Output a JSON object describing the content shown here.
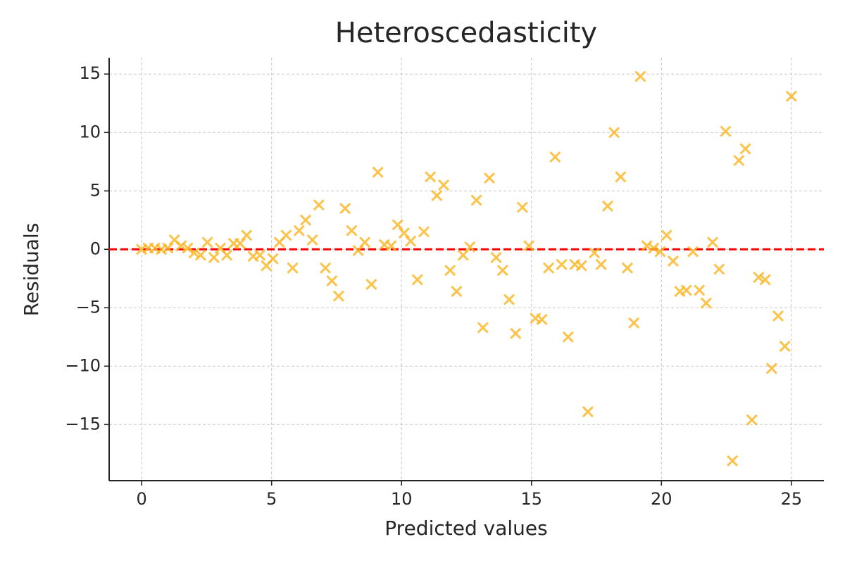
{
  "chart_data": {
    "type": "scatter",
    "title": "Heteroscedasticity",
    "xlabel": "Predicted values",
    "ylabel": "Residuals",
    "x": [
      0,
      0.25,
      0.51,
      0.76,
      1.01,
      1.26,
      1.52,
      1.77,
      2.02,
      2.27,
      2.53,
      2.78,
      3.03,
      3.28,
      3.54,
      3.79,
      4.04,
      4.29,
      4.55,
      4.8,
      5.05,
      5.3,
      5.56,
      5.81,
      6.06,
      6.31,
      6.57,
      6.82,
      7.07,
      7.32,
      7.58,
      7.83,
      8.08,
      8.33,
      8.59,
      8.84,
      9.09,
      9.34,
      9.6,
      9.85,
      10.1,
      10.35,
      10.61,
      10.86,
      11.11,
      11.36,
      11.62,
      11.87,
      12.12,
      12.37,
      12.63,
      12.88,
      13.13,
      13.38,
      13.64,
      13.89,
      14.14,
      14.39,
      14.65,
      14.9,
      15.15,
      15.4,
      15.66,
      15.91,
      16.16,
      16.41,
      16.67,
      16.92,
      17.17,
      17.42,
      17.68,
      17.93,
      18.18,
      18.43,
      18.69,
      18.94,
      19.19,
      19.44,
      19.7,
      19.95,
      20.2,
      20.45,
      20.71,
      20.96,
      21.21,
      21.46,
      21.72,
      21.97,
      22.22,
      22.47,
      22.73,
      22.98,
      23.23,
      23.48,
      23.74,
      23.99,
      24.24,
      24.49,
      24.75,
      25
    ],
    "values": [
      0,
      0.1,
      0.1,
      0,
      0.1,
      0.8,
      0.3,
      0.1,
      -0.3,
      -0.5,
      0.6,
      -0.7,
      0.1,
      -0.5,
      0.5,
      0.5,
      1.2,
      -0.6,
      -0.5,
      -1.4,
      -0.8,
      0.6,
      1.2,
      -1.6,
      1.6,
      2.5,
      0.8,
      3.8,
      -1.6,
      -2.7,
      -4.0,
      3.5,
      1.6,
      -0.1,
      0.6,
      -3.0,
      6.6,
      0.4,
      0.3,
      2.1,
      1.4,
      0.7,
      -2.6,
      1.5,
      6.2,
      4.6,
      5.5,
      -1.8,
      -3.6,
      -0.5,
      0.2,
      4.2,
      -6.7,
      6.1,
      -0.7,
      -1.8,
      -4.3,
      -7.2,
      3.6,
      0.3,
      -5.9,
      -6.0,
      -1.6,
      7.9,
      -1.3,
      -7.5,
      -1.3,
      -1.4,
      -13.9,
      -0.3,
      -1.3,
      3.7,
      10.0,
      6.2,
      -1.6,
      -6.3,
      14.8,
      0.3,
      0.1,
      -0.2,
      1.2,
      -1.0,
      -3.6,
      -3.5,
      -0.2,
      -3.5,
      -4.6,
      0.6,
      -1.7,
      10.1,
      -18.1,
      7.6,
      8.6,
      -14.6,
      -2.4,
      -2.6,
      -10.2,
      -5.7,
      -8.3,
      13.1
    ],
    "color": "#fbb41e",
    "hline": 0,
    "hline_color": "#ff0000",
    "xlim": [
      -1.25,
      26.25
    ],
    "ylim": [
      -19.8,
      16.4
    ],
    "xticks": [
      0,
      5,
      10,
      15,
      20,
      25
    ],
    "yticks": [
      {
        "value": -15,
        "label": "−15"
      },
      {
        "value": -10,
        "label": "−10"
      },
      {
        "value": -5,
        "label": "−5"
      },
      0,
      5,
      10,
      15
    ],
    "grid": true
  }
}
